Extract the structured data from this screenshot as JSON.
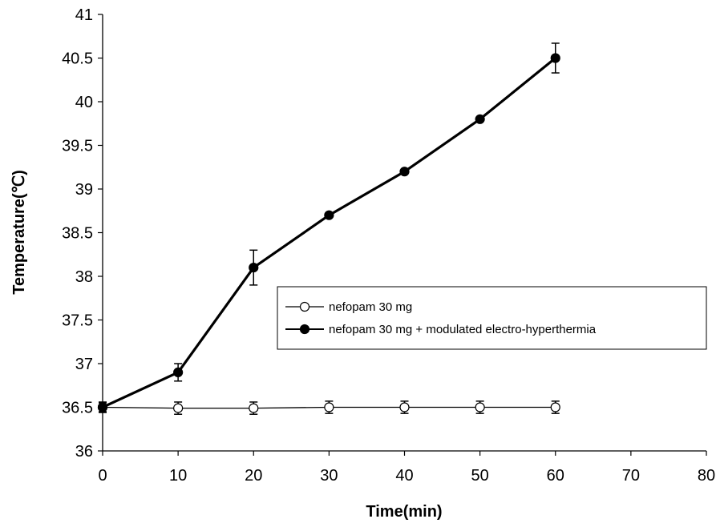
{
  "chart_data": {
    "type": "line",
    "xlabel": "Time(min)",
    "ylabel": "Temperature(℃)",
    "xlim": [
      0,
      80
    ],
    "ylim": [
      36,
      41
    ],
    "x_ticks": [
      "0",
      "10",
      "20",
      "30",
      "40",
      "50",
      "60",
      "70",
      "80"
    ],
    "y_ticks": [
      "36",
      "36.5",
      "37",
      "37.5",
      "38",
      "38.5",
      "39",
      "39.5",
      "40",
      "40.5",
      "41"
    ],
    "grid": false,
    "legend_position": "center-right",
    "series": [
      {
        "name": "nefopam 30 mg",
        "marker": "open-circle",
        "line_weight": "thin",
        "x": [
          0,
          10,
          20,
          30,
          40,
          50,
          60
        ],
        "y": [
          36.5,
          36.49,
          36.49,
          36.5,
          36.5,
          36.5,
          36.5
        ],
        "error": [
          0.06,
          0.07,
          0.07,
          0.07,
          0.07,
          0.07,
          0.07
        ]
      },
      {
        "name": "nefopam 30 mg + modulated electro-hyperthermia",
        "marker": "filled-circle",
        "line_weight": "thick",
        "x": [
          0,
          10,
          20,
          30,
          40,
          50,
          60
        ],
        "y": [
          36.5,
          36.9,
          38.1,
          38.7,
          39.2,
          39.8,
          40.5
        ],
        "error": [
          0.05,
          0.1,
          0.2,
          null,
          null,
          null,
          0.17
        ]
      }
    ],
    "colors": {
      "line": "#000000",
      "open_marker_fill": "#ffffff",
      "filled_marker_fill": "#000000"
    }
  }
}
